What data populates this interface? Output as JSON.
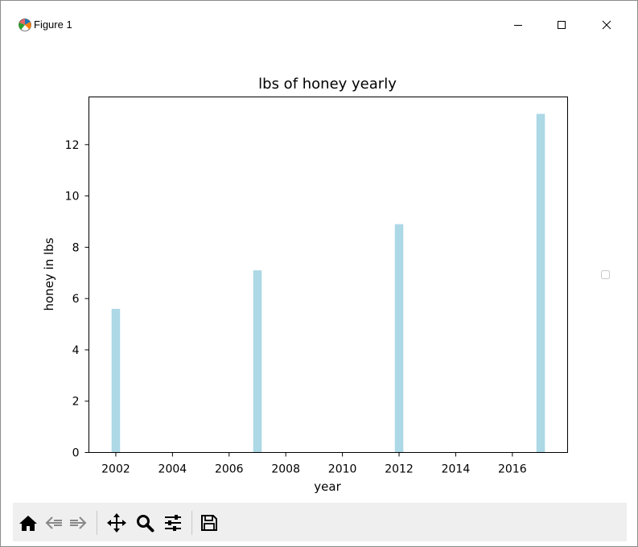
{
  "window": {
    "title": "Figure 1"
  },
  "icons": {
    "app": "matplotlib-figure-icon",
    "minimize": "minimize-icon",
    "maximize": "maximize-icon",
    "close": "close-icon"
  },
  "toolbar": {
    "buttons": [
      {
        "name": "home",
        "icon": "home-icon"
      },
      {
        "name": "back",
        "icon": "back-arrow-icon"
      },
      {
        "name": "forward",
        "icon": "forward-arrow-icon"
      },
      {
        "name": "pan",
        "icon": "pan-move-icon"
      },
      {
        "name": "zoom",
        "icon": "zoom-magnifier-icon"
      },
      {
        "name": "configure-subplots",
        "icon": "sliders-icon"
      },
      {
        "name": "save",
        "icon": "floppy-disk-icon"
      }
    ]
  },
  "chart_data": {
    "type": "bar",
    "title": "lbs of honey yearly",
    "xlabel": "year",
    "ylabel": "honey in lbs",
    "x": [
      2002,
      2007,
      2012,
      2017
    ],
    "values": [
      5.6,
      7.1,
      8.9,
      13.2
    ],
    "xlim": [
      2001.05,
      2017.95
    ],
    "ylim": [
      0,
      13.86
    ],
    "xticks": [
      2002,
      2004,
      2006,
      2008,
      2010,
      2012,
      2014,
      2016
    ],
    "yticks": [
      0,
      2,
      4,
      6,
      8,
      10,
      12
    ],
    "bar_width_years": 0.3,
    "bar_color": "#add8e6",
    "grid": false,
    "legend": "right (empty)"
  }
}
